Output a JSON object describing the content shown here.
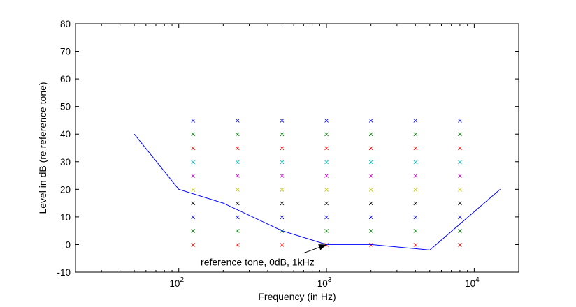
{
  "chart_data": {
    "type": "line",
    "xscale": "log",
    "xlim": [
      20,
      20000
    ],
    "ylim": [
      -10,
      80
    ],
    "yticks": [
      -10,
      0,
      10,
      20,
      30,
      40,
      50,
      60,
      70,
      80
    ],
    "xticks": [
      {
        "value": 100,
        "base": "10",
        "exp": "2"
      },
      {
        "value": 1000,
        "base": "10",
        "exp": "3"
      },
      {
        "value": 10000,
        "base": "10",
        "exp": "4"
      }
    ],
    "xlabel": "Frequency (in Hz)",
    "ylabel": "Level in dB (re reference tone)",
    "grid": false,
    "series": [
      {
        "type": "line",
        "color": "#0000ff",
        "points": [
          {
            "x": 50,
            "y": 40
          },
          {
            "x": 100,
            "y": 20
          },
          {
            "x": 200,
            "y": 15
          },
          {
            "x": 500,
            "y": 5
          },
          {
            "x": 1000,
            "y": 0
          },
          {
            "x": 2000,
            "y": 0
          },
          {
            "x": 5000,
            "y": -2
          },
          {
            "x": 15000,
            "y": 20
          }
        ]
      }
    ],
    "markers": {
      "symbol": "×",
      "frequencies": [
        125,
        250,
        500,
        1000,
        2000,
        4000,
        8000
      ],
      "levels": [
        {
          "y": 0,
          "color": "#ff0000"
        },
        {
          "y": 5,
          "color": "#008000"
        },
        {
          "y": 10,
          "color": "#0000ff"
        },
        {
          "y": 15,
          "color": "#000000"
        },
        {
          "y": 20,
          "color": "#c8c800"
        },
        {
          "y": 25,
          "color": "#c000c0"
        },
        {
          "y": 30,
          "color": "#00c0c0"
        },
        {
          "y": 35,
          "color": "#ff0000"
        },
        {
          "y": 40,
          "color": "#008000"
        },
        {
          "y": 45,
          "color": "#0000ff"
        }
      ]
    },
    "annotation": {
      "text": "reference tone, 0dB, 1kHz",
      "x": 1000,
      "y": 0
    }
  }
}
